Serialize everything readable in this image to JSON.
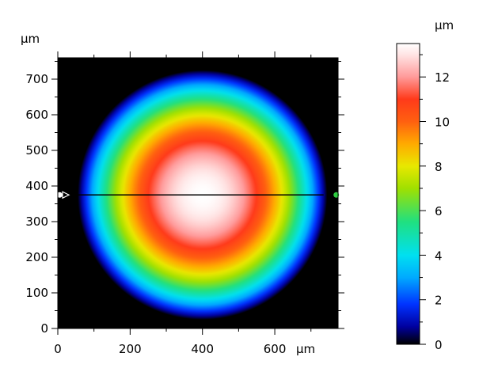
{
  "chart_data": {
    "type": "heatmap",
    "plot": {
      "x_unit_label": "µm",
      "y_unit_label": "µm",
      "xlim": [
        0,
        775
      ],
      "ylim": [
        0,
        760
      ],
      "x_ticks": [
        {
          "value": 0,
          "label": "0"
        },
        {
          "value": 200,
          "label": "200"
        },
        {
          "value": 400,
          "label": "400"
        },
        {
          "value": 600,
          "label": "600"
        }
      ],
      "y_ticks": [
        {
          "value": 0,
          "label": "0"
        },
        {
          "value": 100,
          "label": "100"
        },
        {
          "value": 200,
          "label": "200"
        },
        {
          "value": 300,
          "label": "300"
        },
        {
          "value": 400,
          "label": "400"
        },
        {
          "value": 500,
          "label": "500"
        },
        {
          "value": 600,
          "label": "600"
        },
        {
          "value": 700,
          "label": "700"
        }
      ],
      "x_minor_step": 100,
      "y_minor_step": 50,
      "background_color": "#000000",
      "surface": {
        "shape": "spherical cap",
        "center_x": 400,
        "center_y": 375,
        "radius": 345,
        "peak_height": 13.5
      },
      "profile_line": {
        "y": 375,
        "x_start": 50,
        "x_end": 735,
        "color": "#000000"
      },
      "markers": [
        {
          "x": 5,
          "y": 375,
          "color": "#ffffff",
          "shape": "circle-half"
        },
        {
          "x": 22,
          "y": 375,
          "color": "#ffffff",
          "shape": "triangle-right"
        },
        {
          "x": 770,
          "y": 375,
          "color": "#2ecc40",
          "shape": "circle-half"
        }
      ]
    },
    "colorbar": {
      "unit_label": "µm",
      "range": [
        0,
        13.5
      ],
      "ticks": [
        {
          "value": 0,
          "label": "0"
        },
        {
          "value": 2,
          "label": "2"
        },
        {
          "value": 4,
          "label": "4"
        },
        {
          "value": 6,
          "label": "6"
        },
        {
          "value": 8,
          "label": "8"
        },
        {
          "value": 10,
          "label": "10"
        },
        {
          "value": 12,
          "label": "12"
        }
      ],
      "minor_step": 1,
      "stops": [
        {
          "value": 0,
          "color": "#000000"
        },
        {
          "value": 0.8,
          "color": "#0000a0"
        },
        {
          "value": 1.8,
          "color": "#0033ff"
        },
        {
          "value": 3.0,
          "color": "#00aaff"
        },
        {
          "value": 4.0,
          "color": "#00e0f0"
        },
        {
          "value": 5.5,
          "color": "#20e080"
        },
        {
          "value": 7.0,
          "color": "#a0e000"
        },
        {
          "value": 8.0,
          "color": "#e8e800"
        },
        {
          "value": 9.0,
          "color": "#ffaa00"
        },
        {
          "value": 10.0,
          "color": "#ff6010"
        },
        {
          "value": 11.0,
          "color": "#ff3a1a"
        },
        {
          "value": 12.0,
          "color": "#ff9a9a"
        },
        {
          "value": 13.0,
          "color": "#ffe4e4"
        },
        {
          "value": 13.5,
          "color": "#ffffff"
        }
      ]
    }
  }
}
